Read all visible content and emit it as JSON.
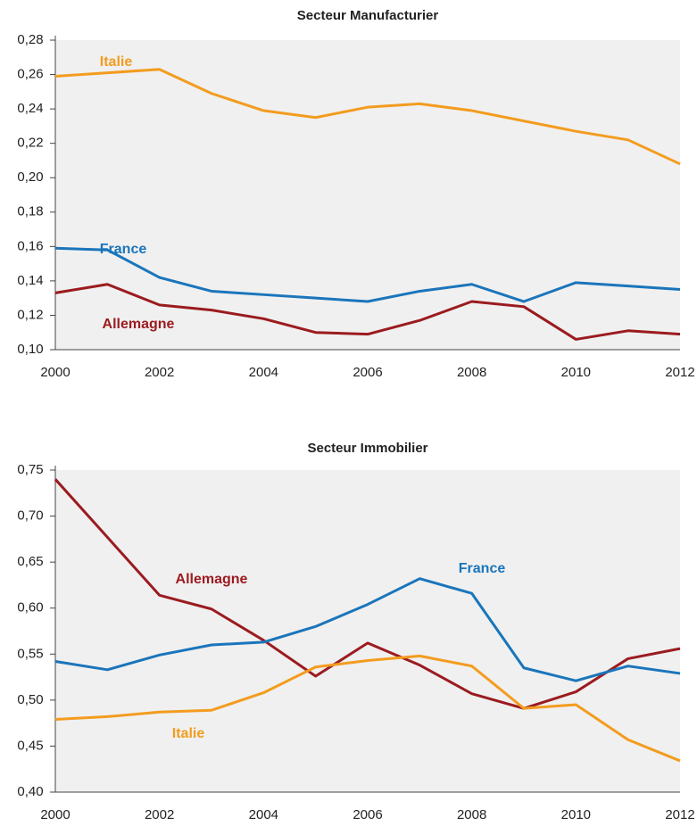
{
  "chart_data": [
    {
      "type": "line",
      "title": "Secteur Manufacturier",
      "x": [
        2000,
        2001,
        2002,
        2003,
        2004,
        2005,
        2006,
        2007,
        2008,
        2009,
        2010,
        2011,
        2012
      ],
      "xlim": [
        2000,
        2012
      ],
      "xticks": [
        2000,
        2002,
        2004,
        2006,
        2008,
        2010,
        2012
      ],
      "ylim": [
        0.1,
        0.28
      ],
      "yticks": [
        {
          "value": 0.1,
          "label": "0,10"
        },
        {
          "value": 0.12,
          "label": "0,12"
        },
        {
          "value": 0.14,
          "label": "0,14"
        },
        {
          "value": 0.16,
          "label": "0,16"
        },
        {
          "value": 0.18,
          "label": "0,18"
        },
        {
          "value": 0.2,
          "label": "0,20"
        },
        {
          "value": 0.22,
          "label": "0,22"
        },
        {
          "value": 0.24,
          "label": "0,24"
        },
        {
          "value": 0.26,
          "label": "0,26"
        },
        {
          "value": 0.28,
          "label": "0,28"
        }
      ],
      "series": [
        {
          "name": "Italie",
          "color": "#f39c1f",
          "values": [
            0.259,
            0.261,
            0.263,
            0.249,
            0.239,
            0.235,
            0.241,
            0.243,
            0.239,
            0.233,
            0.227,
            0.222,
            0.208
          ]
        },
        {
          "name": "France",
          "color": "#1a75bb",
          "values": [
            0.159,
            0.158,
            0.142,
            0.134,
            0.132,
            0.13,
            0.128,
            0.134,
            0.138,
            0.128,
            0.139,
            0.137,
            0.135
          ]
        },
        {
          "name": "Allemagne",
          "color": "#9b1b1f",
          "values": [
            0.133,
            0.138,
            0.126,
            0.123,
            0.118,
            0.11,
            0.109,
            0.117,
            0.128,
            0.125,
            0.106,
            0.111,
            0.109
          ]
        }
      ]
    },
    {
      "type": "line",
      "title": "Secteur Immobilier",
      "x": [
        2000,
        2001,
        2002,
        2003,
        2004,
        2005,
        2006,
        2007,
        2008,
        2009,
        2010,
        2011,
        2012
      ],
      "xlim": [
        2000,
        2012
      ],
      "xticks": [
        2000,
        2002,
        2004,
        2006,
        2008,
        2010,
        2012
      ],
      "ylim": [
        0.4,
        0.75
      ],
      "yticks": [
        {
          "value": 0.4,
          "label": "0,40"
        },
        {
          "value": 0.45,
          "label": "0,45"
        },
        {
          "value": 0.5,
          "label": "0,50"
        },
        {
          "value": 0.55,
          "label": "0,55"
        },
        {
          "value": 0.6,
          "label": "0,60"
        },
        {
          "value": 0.65,
          "label": "0,65"
        },
        {
          "value": 0.7,
          "label": "0,70"
        },
        {
          "value": 0.75,
          "label": "0,75"
        }
      ],
      "series": [
        {
          "name": "Allemagne",
          "color": "#9b1b1f",
          "values": [
            0.74,
            0.677,
            0.614,
            0.599,
            0.565,
            0.526,
            0.562,
            0.538,
            0.507,
            0.491,
            0.509,
            0.545,
            0.556
          ]
        },
        {
          "name": "France",
          "color": "#1a75bb",
          "values": [
            0.542,
            0.533,
            0.549,
            0.56,
            0.563,
            0.58,
            0.604,
            0.632,
            0.616,
            0.535,
            0.521,
            0.537,
            0.529
          ]
        },
        {
          "name": "Italie",
          "color": "#f39c1f",
          "values": [
            0.479,
            0.482,
            0.487,
            0.489,
            0.508,
            0.536,
            0.543,
            0.548,
            0.537,
            0.491,
            0.495,
            0.457,
            0.434
          ]
        }
      ]
    }
  ]
}
